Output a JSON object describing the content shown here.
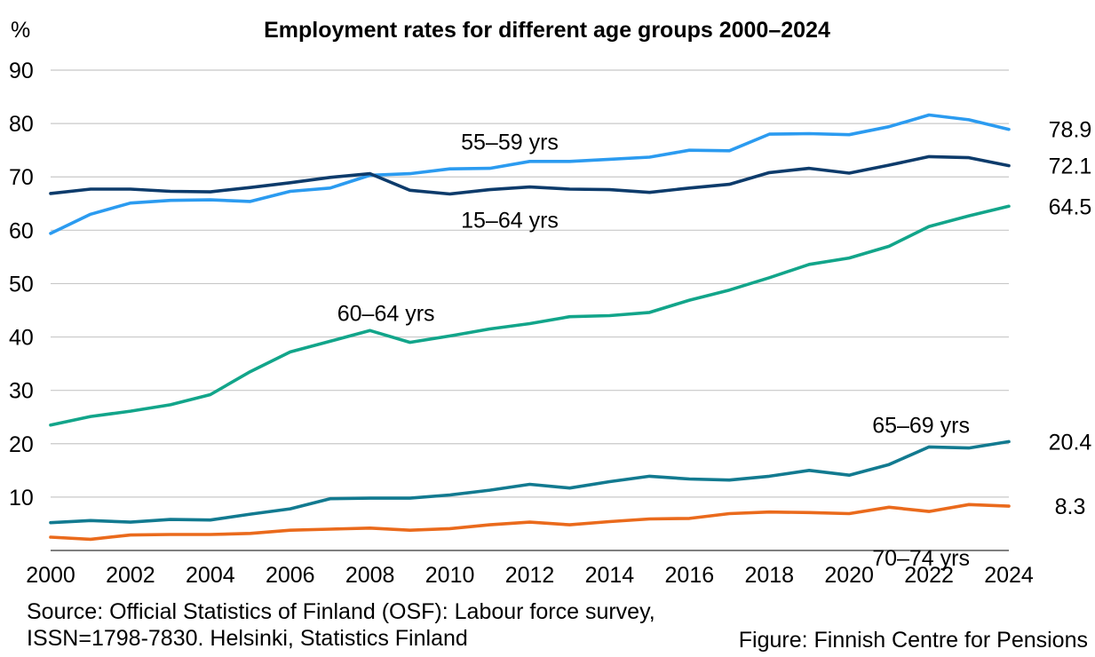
{
  "chart_data": {
    "type": "line",
    "title": "Employment rates for different age groups 2000–2024",
    "ylabel": "%",
    "xlabel": "",
    "ylim": [
      0,
      90
    ],
    "yticks": [
      10,
      20,
      30,
      40,
      50,
      60,
      70,
      80,
      90
    ],
    "xticks": [
      2000,
      2002,
      2004,
      2006,
      2008,
      2010,
      2012,
      2014,
      2016,
      2018,
      2020,
      2022,
      2024
    ],
    "grid": "horizontal",
    "legend": "inline labels",
    "x": [
      2000,
      2001,
      2002,
      2003,
      2004,
      2005,
      2006,
      2007,
      2008,
      2009,
      2010,
      2011,
      2012,
      2013,
      2014,
      2015,
      2016,
      2017,
      2018,
      2019,
      2020,
      2021,
      2022,
      2023,
      2024
    ],
    "series": [
      {
        "name": "55–59 yrs",
        "color": "#2b9bf0",
        "end_label": "78.9",
        "values": [
          59.4,
          63.0,
          65.1,
          65.6,
          65.7,
          65.4,
          67.3,
          67.9,
          70.3,
          70.6,
          71.5,
          71.6,
          72.9,
          72.9,
          73.3,
          73.7,
          75.0,
          74.9,
          78.0,
          78.1,
          77.9,
          79.4,
          81.6,
          80.7,
          78.9
        ]
      },
      {
        "name": "15–64 yrs",
        "color": "#0d3b6b",
        "end_label": "72.1",
        "values": [
          66.9,
          67.7,
          67.7,
          67.3,
          67.2,
          68.0,
          68.9,
          69.9,
          70.6,
          67.5,
          66.8,
          67.6,
          68.1,
          67.7,
          67.6,
          67.1,
          67.9,
          68.6,
          70.8,
          71.6,
          70.7,
          72.2,
          73.8,
          73.6,
          72.1
        ]
      },
      {
        "name": "60–64 yrs",
        "color": "#12a58a",
        "end_label": "64.5",
        "values": [
          23.5,
          25.1,
          26.1,
          27.3,
          29.2,
          33.5,
          37.2,
          39.2,
          41.2,
          39.0,
          40.2,
          41.5,
          42.5,
          43.8,
          44.0,
          44.6,
          46.9,
          48.8,
          51.1,
          53.6,
          54.8,
          57.0,
          60.7,
          62.7,
          64.5
        ]
      },
      {
        "name": "65–69 yrs",
        "color": "#127a90",
        "end_label": "20.4",
        "values": [
          5.2,
          5.6,
          5.3,
          5.8,
          5.7,
          6.8,
          7.8,
          9.7,
          9.8,
          9.8,
          10.4,
          11.3,
          12.4,
          11.7,
          12.9,
          13.9,
          13.4,
          13.2,
          13.9,
          15.0,
          14.1,
          16.1,
          19.4,
          19.2,
          20.4
        ]
      },
      {
        "name": "70–74 yrs",
        "color": "#ea6a1c",
        "end_label": "8.3",
        "values": [
          2.5,
          2.1,
          2.9,
          3.0,
          3.0,
          3.2,
          3.8,
          4.0,
          4.2,
          3.8,
          4.1,
          4.8,
          5.3,
          4.8,
          5.4,
          5.9,
          6.0,
          6.9,
          7.2,
          7.1,
          6.9,
          8.1,
          7.3,
          8.6,
          8.3
        ]
      }
    ]
  },
  "footer": {
    "source_line1": "Source: Official Statistics of Finland (OSF): Labour force survey,",
    "source_line2": "ISSN=1798-7830. Helsinki, Statistics Finland",
    "credit": "Figure: Finnish Centre for Pensions"
  }
}
